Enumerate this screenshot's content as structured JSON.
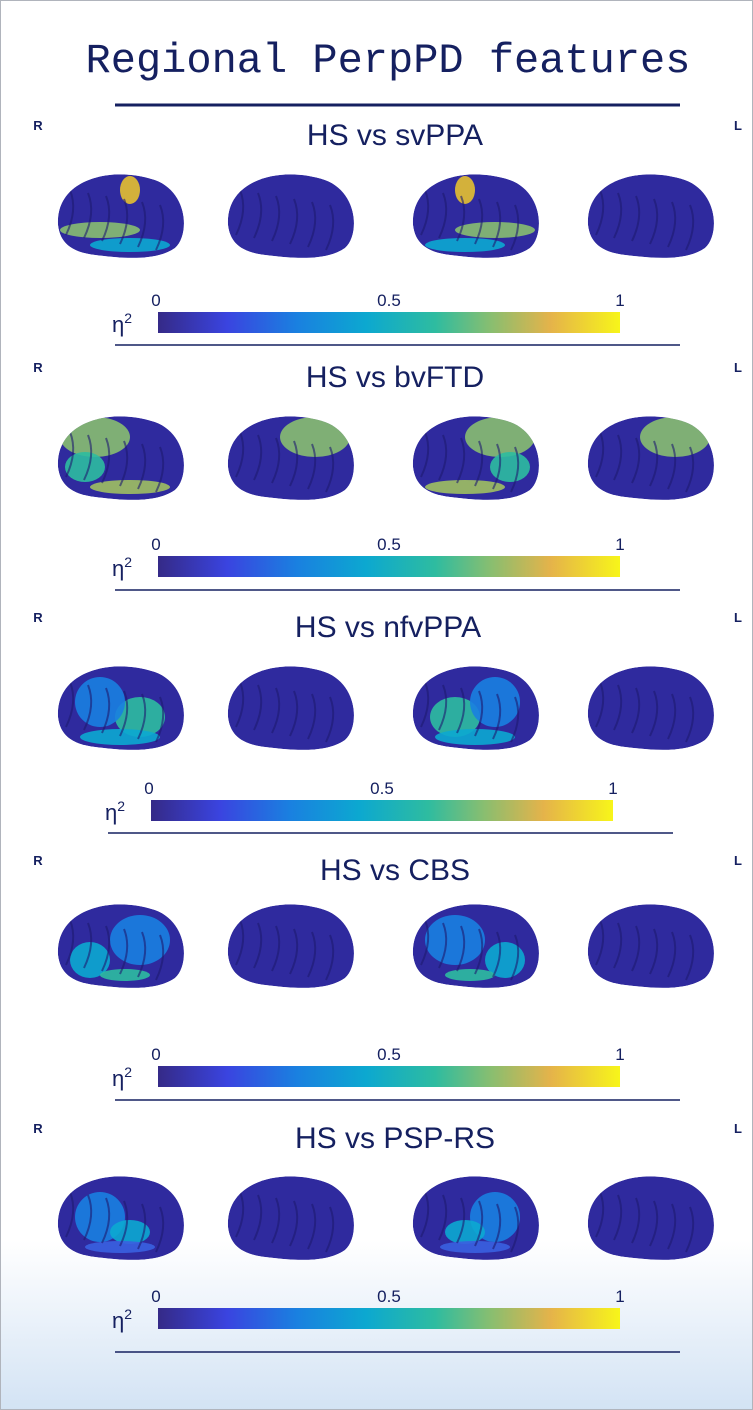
{
  "title": "Regional PerpPD features",
  "panels": [
    {
      "left_side": "R",
      "right_side": "L",
      "heading": "HS vs svPPA",
      "colorbar": {
        "symbol": "η",
        "exponent": "2",
        "ticks": [
          0,
          0.5,
          1
        ]
      }
    },
    {
      "left_side": "R",
      "right_side": "L",
      "heading": "HS vs bvFTD",
      "colorbar": {
        "symbol": "η",
        "exponent": "2",
        "ticks": [
          0,
          0.5,
          1
        ]
      }
    },
    {
      "left_side": "R",
      "right_side": "L",
      "heading": "HS vs nfvPPA",
      "colorbar": {
        "symbol": "η",
        "exponent": "2",
        "ticks": [
          0,
          0.5,
          1
        ]
      }
    },
    {
      "left_side": "R",
      "right_side": "L",
      "heading": "HS vs CBS",
      "colorbar": {
        "symbol": "η",
        "exponent": "2",
        "ticks": [
          0,
          0.5,
          1
        ]
      }
    },
    {
      "left_side": "R",
      "right_side": "L",
      "heading": "HS vs PSP-RS",
      "colorbar": {
        "symbol": "η",
        "exponent": "2",
        "ticks": [
          0,
          0.5,
          1
        ]
      }
    }
  ]
}
